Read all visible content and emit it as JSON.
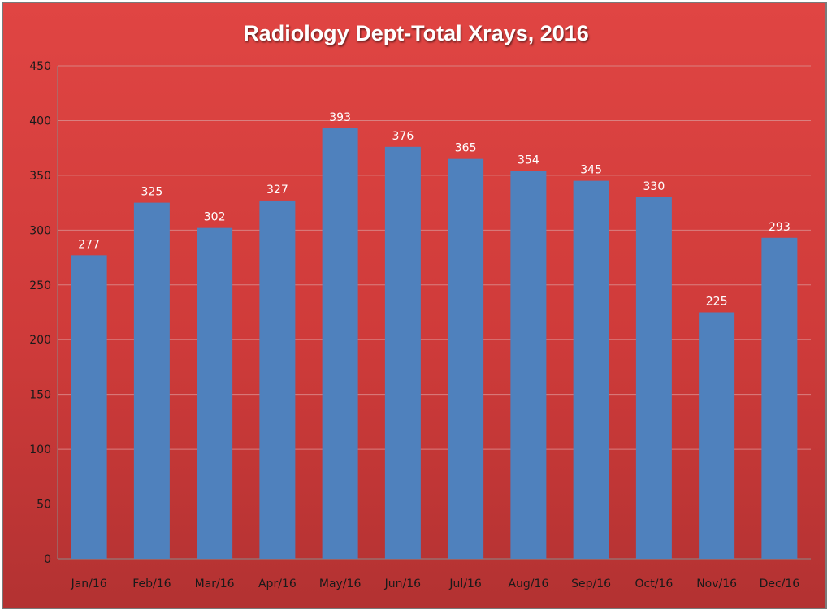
{
  "chart_data": {
    "type": "bar",
    "title": "Radiology Dept-Total Xrays, 2016",
    "xlabel": "",
    "ylabel": "",
    "categories": [
      "Jan/16",
      "Feb/16",
      "Mar/16",
      "Apr/16",
      "May/16",
      "Jun/16",
      "Jul/16",
      "Aug/16",
      "Sep/16",
      "Oct/16",
      "Nov/16",
      "Dec/16"
    ],
    "values": [
      277,
      325,
      302,
      327,
      393,
      376,
      365,
      354,
      345,
      330,
      225,
      293
    ],
    "ylim": [
      0,
      450
    ],
    "yticks": [
      0,
      50,
      100,
      150,
      200,
      250,
      300,
      350,
      400,
      450
    ],
    "grid": true,
    "legend": "none",
    "colors": {
      "bar": "#4f81bd",
      "background_top": "#e04543",
      "background_bottom": "#b33232",
      "gridline": "#d98080",
      "axis": "#8a8a8a",
      "title": "#ffffff",
      "data_label": "#ffffff",
      "tick_label": "#1a1a1a"
    }
  }
}
